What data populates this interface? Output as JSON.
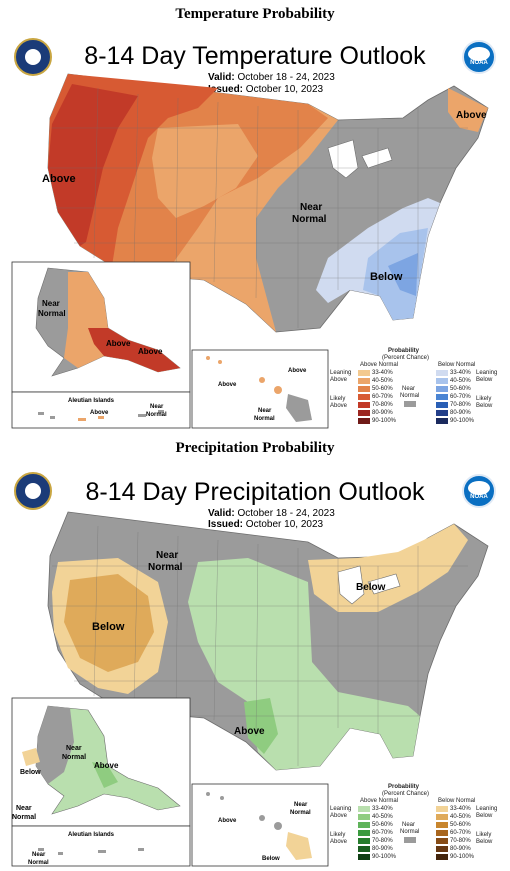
{
  "temperature": {
    "section_title": "Temperature Probability",
    "map_title": "8-14 Day Temperature Outlook",
    "valid_label": "Valid:",
    "valid_value": "October 18 - 24, 2023",
    "issued_label": "Issued:",
    "issued_value": "October 10, 2023",
    "labels": {
      "above_west": "Above",
      "above_ne": "Above",
      "near_normal_1": "Near",
      "near_normal_2": "Normal",
      "below": "Below",
      "ak_near_1": "Near",
      "ak_near_2": "Normal",
      "ak_above_1": "Above",
      "ak_above_2": "Above",
      "aleutian_title": "Aleutian Islands",
      "aleutian_above": "Above",
      "aleutian_near_1": "Near",
      "aleutian_near_2": "Normal",
      "hi_above_1": "Above",
      "hi_above_2": "Above",
      "hi_near_1": "Near",
      "hi_near_2": "Normal"
    },
    "legend": {
      "title_1": "Probability",
      "title_2": "(Percent Chance)",
      "col_left": "Above Normal",
      "col_right": "Below Normal",
      "leaning_left_1": "Leaning",
      "leaning_left_2": "Above",
      "likely_left_1": "Likely",
      "likely_left_2": "Above",
      "near_1": "Near",
      "near_2": "Normal",
      "leaning_right_1": "Leaning",
      "leaning_right_2": "Below",
      "likely_right_1": "Likely",
      "likely_right_2": "Below",
      "ranges": [
        "33-40%",
        "40-50%",
        "50-60%",
        "60-70%",
        "70-80%",
        "80-90%",
        "90-100%"
      ],
      "left_colors": [
        "#f3c98f",
        "#eba56a",
        "#e2834a",
        "#d75a33",
        "#c23a28",
        "#9c2620",
        "#6f1a17"
      ],
      "right_colors": [
        "#d0dbf0",
        "#a8c3ec",
        "#7da5e2",
        "#4a84d3",
        "#2a5fb5",
        "#233f8a",
        "#1b2a5e"
      ]
    }
  },
  "precipitation": {
    "section_title": "Precipitation Probability",
    "map_title": "8-14 Day Precipitation Outlook",
    "valid_label": "Valid:",
    "valid_value": "October 18 - 24, 2023",
    "issued_label": "Issued:",
    "issued_value": "October 10, 2023",
    "labels": {
      "near_normal_1": "Near",
      "near_normal_2": "Normal",
      "below_west": "Below",
      "below_ne": "Below",
      "above_tx": "Above",
      "ak_below": "Below",
      "ak_near_1": "Near",
      "ak_near_2": "Normal",
      "ak_above": "Above",
      "ak_near_sw_1": "Near",
      "ak_near_sw_2": "Normal",
      "aleutian_title": "Aleutian Islands",
      "aleutian_near_1": "Near",
      "aleutian_near_2": "Normal",
      "hi_above": "Above",
      "hi_near_1": "Near",
      "hi_near_2": "Normal",
      "hi_below": "Below"
    },
    "legend": {
      "title_1": "Probability",
      "title_2": "(Percent Chance)",
      "col_left": "Above Normal",
      "col_right": "Below Normal",
      "leaning_left_1": "Leaning",
      "leaning_left_2": "Above",
      "likely_left_1": "Likely",
      "likely_left_2": "Above",
      "near_1": "Near",
      "near_2": "Normal",
      "leaning_right_1": "Leaning",
      "leaning_right_2": "Below",
      "likely_right_1": "Likely",
      "likely_right_2": "Below",
      "ranges": [
        "33-40%",
        "40-50%",
        "50-60%",
        "60-70%",
        "70-80%",
        "80-90%",
        "90-100%"
      ],
      "left_colors": [
        "#b9dfae",
        "#8fcc80",
        "#5fb35a",
        "#3a9a3e",
        "#267c2c",
        "#1a5e20",
        "#0f3f14"
      ],
      "right_colors": [
        "#f2d397",
        "#dfaa5a",
        "#c8862e",
        "#a9661e",
        "#874c16",
        "#673812",
        "#44250c"
      ]
    }
  },
  "colors": {
    "near_normal": "#9b9b9b",
    "land_dark_gray": "#8e8e8e",
    "water": "#ffffff",
    "state_line": "#6d6d6d"
  },
  "icons": [
    "doc-seal-icon",
    "noaa-logo-icon"
  ],
  "noaa_text": "NOAA"
}
